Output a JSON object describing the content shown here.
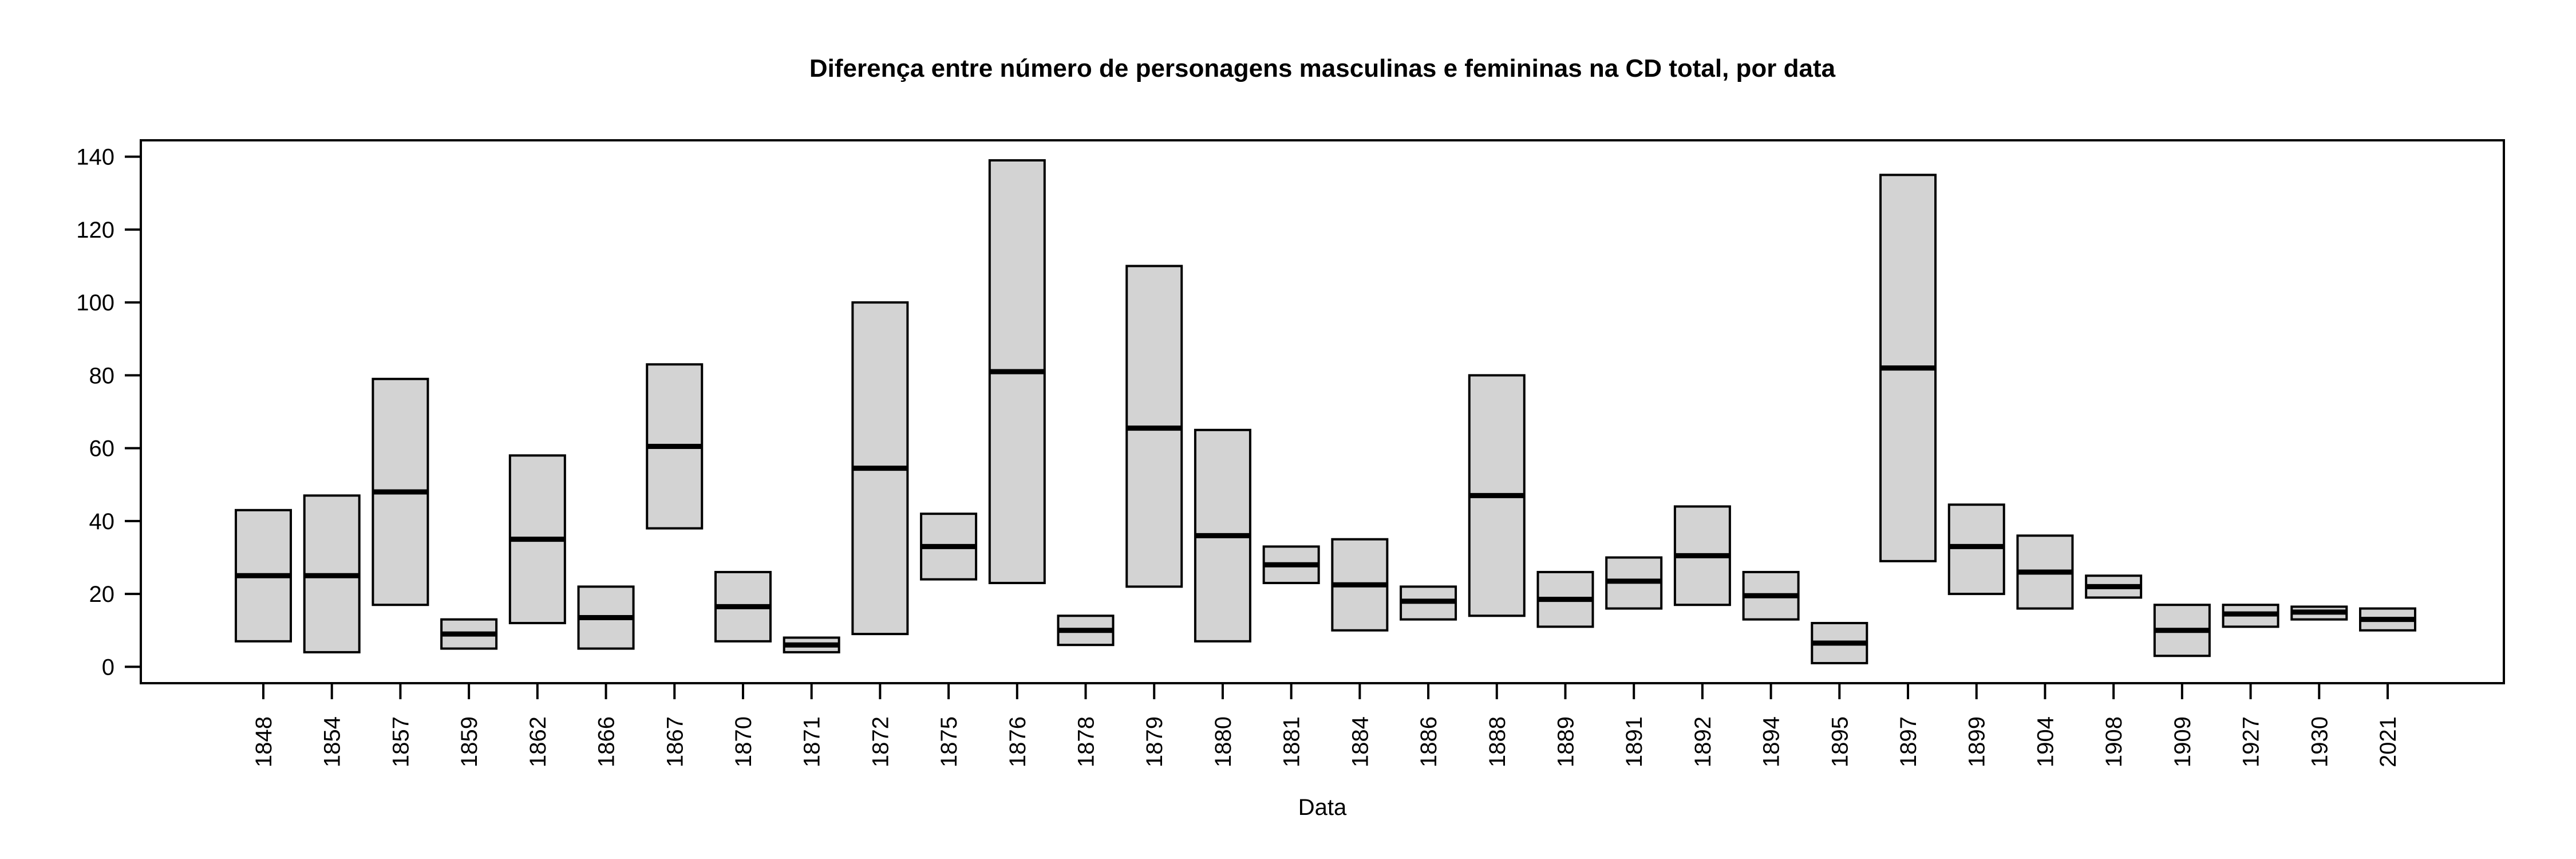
{
  "window": {
    "background": "#ffffff"
  },
  "chart_data": {
    "type": "boxplot",
    "title": "Diferença entre número de personagens masculinas e femininas na CD total, por data",
    "xlabel": "Data",
    "ylabel": "",
    "grid": false,
    "legend": null,
    "whiskers": false,
    "box_fill": "#d3d3d3",
    "line_color": "#000000",
    "y_ticks": [
      0,
      20,
      40,
      60,
      80,
      100,
      120,
      140
    ],
    "ylim": [
      -4.5,
      144.5
    ],
    "categories": [
      "1848",
      "1854",
      "1857",
      "1859",
      "1862",
      "1866",
      "1867",
      "1870",
      "1871",
      "1872",
      "1875",
      "1876",
      "1878",
      "1879",
      "1880",
      "1881",
      "1884",
      "1886",
      "1888",
      "1889",
      "1891",
      "1892",
      "1894",
      "1895",
      "1897",
      "1899",
      "1904",
      "1908",
      "1909",
      "1927",
      "1930",
      "2021"
    ],
    "boxes": [
      {
        "label": "1848",
        "low": 7,
        "median": 25,
        "high": 43
      },
      {
        "label": "1854",
        "low": 4,
        "median": 25,
        "high": 47
      },
      {
        "label": "1857",
        "low": 17,
        "median": 48,
        "high": 79
      },
      {
        "label": "1859",
        "low": 5,
        "median": 9,
        "high": 13
      },
      {
        "label": "1862",
        "low": 12,
        "median": 35,
        "high": 58
      },
      {
        "label": "1866",
        "low": 5,
        "median": 13.5,
        "high": 22
      },
      {
        "label": "1867",
        "low": 38,
        "median": 60.5,
        "high": 83
      },
      {
        "label": "1870",
        "low": 7,
        "median": 16.5,
        "high": 26
      },
      {
        "label": "1871",
        "low": 4,
        "median": 6,
        "high": 8
      },
      {
        "label": "1872",
        "low": 9,
        "median": 54.5,
        "high": 100
      },
      {
        "label": "1875",
        "low": 24,
        "median": 33,
        "high": 42
      },
      {
        "label": "1876",
        "low": 23,
        "median": 81,
        "high": 139
      },
      {
        "label": "1878",
        "low": 6,
        "median": 10,
        "high": 14
      },
      {
        "label": "1879",
        "low": 22,
        "median": 65.5,
        "high": 110
      },
      {
        "label": "1880",
        "low": 7,
        "median": 36,
        "high": 65
      },
      {
        "label": "1881",
        "low": 23,
        "median": 28,
        "high": 33
      },
      {
        "label": "1884",
        "low": 10,
        "median": 22.5,
        "high": 35
      },
      {
        "label": "1886",
        "low": 13,
        "median": 18,
        "high": 22
      },
      {
        "label": "1888",
        "low": 14,
        "median": 47,
        "high": 80
      },
      {
        "label": "1889",
        "low": 11,
        "median": 18.5,
        "high": 26
      },
      {
        "label": "1891",
        "low": 16,
        "median": 23.5,
        "high": 30
      },
      {
        "label": "1892",
        "low": 17,
        "median": 30.5,
        "high": 44
      },
      {
        "label": "1894",
        "low": 13,
        "median": 19.5,
        "high": 26
      },
      {
        "label": "1895",
        "low": 1,
        "median": 6.5,
        "high": 12
      },
      {
        "label": "1897",
        "low": 29,
        "median": 82,
        "high": 135
      },
      {
        "label": "1899",
        "low": 20,
        "median": 33,
        "high": 44.5
      },
      {
        "label": "1904",
        "low": 16,
        "median": 26,
        "high": 36
      },
      {
        "label": "1908",
        "low": 19,
        "median": 22,
        "high": 25
      },
      {
        "label": "1909",
        "low": 3,
        "median": 10,
        "high": 17
      },
      {
        "label": "1927",
        "low": 11,
        "median": 14.5,
        "high": 17
      },
      {
        "label": "1930",
        "low": 13,
        "median": 15,
        "high": 16.5
      },
      {
        "label": "2021",
        "low": 10,
        "median": 13,
        "high": 16
      }
    ]
  }
}
